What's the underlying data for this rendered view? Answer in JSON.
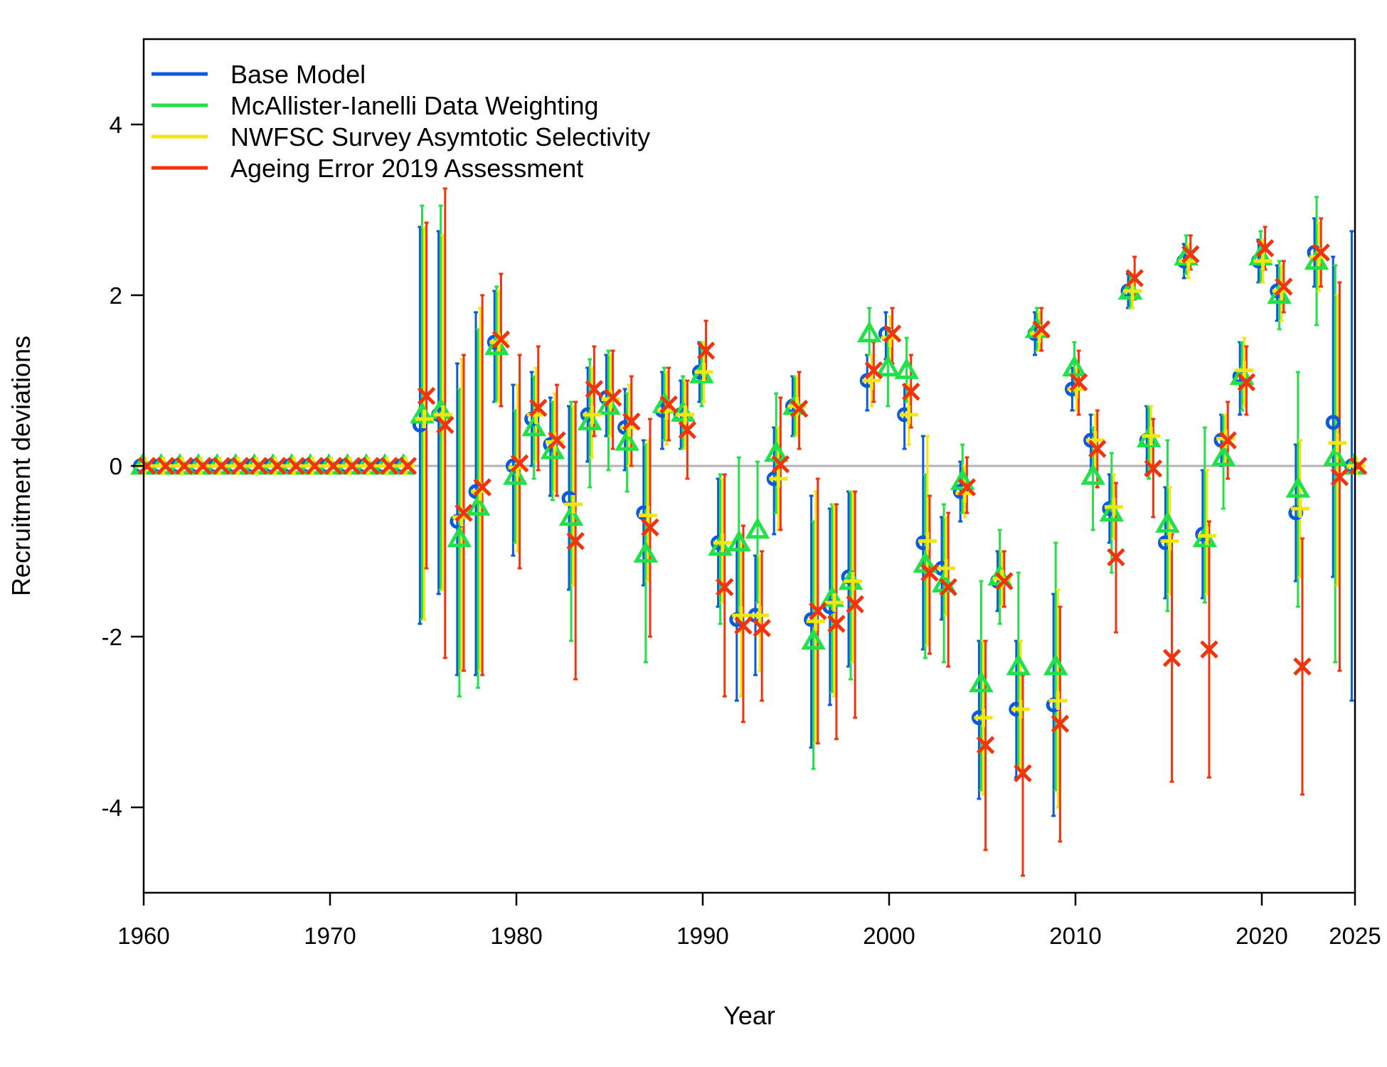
{
  "chart_data": {
    "type": "scatter",
    "title": "",
    "xlabel": "Year",
    "ylabel": "Recruitment deviations",
    "xlim": [
      1960,
      2025
    ],
    "ylim": [
      -5,
      5
    ],
    "x_ticks": [
      1960,
      1970,
      1980,
      1990,
      2000,
      2010,
      2020,
      2025
    ],
    "x_tick_labels": [
      "1960",
      "1970",
      "1980",
      "1990",
      "2000",
      "2010",
      "2020",
      "2025"
    ],
    "y_ticks": [
      -4,
      -2,
      0,
      2,
      4
    ],
    "y_tick_labels": [
      "-4",
      "-2",
      "0",
      "2",
      "4"
    ],
    "reference_line": 0,
    "legend_position": "top-left",
    "grid": false,
    "series": [
      {
        "name": "Base Model",
        "color": "#0b5bd8",
        "marker": "circle",
        "x": [
          1960,
          1961,
          1962,
          1963,
          1964,
          1965,
          1966,
          1967,
          1968,
          1969,
          1970,
          1971,
          1972,
          1973,
          1974,
          1975,
          1976,
          1977,
          1978,
          1979,
          1980,
          1981,
          1982,
          1983,
          1984,
          1985,
          1986,
          1987,
          1988,
          1989,
          1990,
          1991,
          1992,
          1993,
          1994,
          1995,
          1996,
          1997,
          1998,
          1999,
          2000,
          2001,
          2002,
          2003,
          2004,
          2005,
          2006,
          2007,
          2008,
          2009,
          2010,
          2011,
          2012,
          2013,
          2014,
          2015,
          2016,
          2017,
          2018,
          2019,
          2020,
          2021,
          2022,
          2023,
          2024,
          2025
        ],
        "y": [
          0,
          0,
          0,
          0,
          0,
          0,
          0,
          0,
          0,
          0,
          0,
          0,
          0,
          0,
          0,
          0.48,
          0.6,
          -0.65,
          -0.3,
          1.45,
          0,
          0.55,
          0.25,
          -0.38,
          0.6,
          0.8,
          0.45,
          -0.55,
          0.65,
          0.6,
          1.1,
          -0.9,
          -1.8,
          -1.75,
          -0.15,
          0.7,
          -1.8,
          -1.65,
          -1.3,
          1.0,
          1.55,
          0.6,
          -0.9,
          -1.2,
          -0.3,
          -2.95,
          -1.35,
          -2.85,
          1.55,
          -2.8,
          0.9,
          0.3,
          -0.5,
          2.05,
          0.3,
          -0.9,
          2.4,
          -0.8,
          0.3,
          1.05,
          2.4,
          2.05,
          -0.55,
          2.5,
          0.51,
          0
        ],
        "lower": [
          0,
          0,
          0,
          0,
          0,
          0,
          0,
          0,
          0,
          0,
          0,
          0,
          0,
          0,
          0,
          -1.85,
          -1.5,
          -2.45,
          -2.45,
          0.75,
          -1.05,
          0.0,
          -0.35,
          -1.45,
          0.05,
          0.35,
          -0.05,
          -1.4,
          0.2,
          0.2,
          0.75,
          -1.65,
          -2.75,
          -2.45,
          -0.8,
          0.35,
          -3.3,
          -2.8,
          -2.35,
          0.65,
          1.25,
          0.2,
          -2.15,
          -1.8,
          -0.65,
          -3.9,
          -1.7,
          -3.65,
          1.3,
          -4.1,
          0.65,
          -0.05,
          -0.9,
          1.85,
          -0.1,
          -1.55,
          2.2,
          -1.55,
          0.0,
          0.6,
          2.15,
          1.7,
          -1.35,
          2.1,
          -1.3,
          -2.75
        ],
        "upper": [
          0,
          0,
          0,
          0,
          0,
          0,
          0,
          0,
          0,
          0,
          0,
          0,
          0,
          0,
          0,
          2.8,
          2.75,
          1.2,
          1.8,
          2.05,
          0.95,
          1.1,
          0.8,
          0.7,
          1.15,
          1.3,
          0.9,
          0.3,
          1.1,
          1.0,
          1.45,
          -0.15,
          -0.85,
          -1.05,
          0.45,
          1.05,
          -0.35,
          -0.5,
          -0.3,
          1.3,
          1.8,
          0.95,
          0.35,
          -0.6,
          0.05,
          -2.05,
          -1.0,
          -2.05,
          1.8,
          -1.5,
          1.15,
          0.6,
          -0.1,
          2.25,
          0.7,
          -0.25,
          2.6,
          -0.05,
          0.6,
          1.45,
          2.65,
          2.35,
          0.25,
          2.9,
          2.45,
          2.75
        ]
      },
      {
        "name": "McAllister-Ianelli Data Weighting",
        "color": "#22e04a",
        "marker": "triangle",
        "x": [
          1960,
          1961,
          1962,
          1963,
          1964,
          1965,
          1966,
          1967,
          1968,
          1969,
          1970,
          1971,
          1972,
          1973,
          1974,
          1975,
          1976,
          1977,
          1978,
          1979,
          1980,
          1981,
          1982,
          1983,
          1984,
          1985,
          1986,
          1987,
          1988,
          1989,
          1990,
          1991,
          1992,
          1993,
          1994,
          1995,
          1996,
          1997,
          1998,
          1999,
          2000,
          2001,
          2002,
          2003,
          2004,
          2005,
          2006,
          2007,
          2008,
          2009,
          2010,
          2011,
          2012,
          2013,
          2014,
          2015,
          2016,
          2017,
          2018,
          2019,
          2020,
          2021,
          2022,
          2023,
          2024,
          2025
        ],
        "y": [
          0,
          0,
          0,
          0,
          0,
          0,
          0,
          0,
          0,
          0,
          0,
          0,
          0,
          0,
          0,
          0.6,
          0.65,
          -0.85,
          -0.48,
          1.4,
          -0.12,
          0.45,
          0.18,
          -0.6,
          0.52,
          0.7,
          0.28,
          -1.03,
          0.72,
          0.62,
          1.07,
          -0.95,
          -0.9,
          -0.75,
          0.15,
          0.7,
          -2.05,
          -1.55,
          -1.35,
          1.55,
          1.15,
          1.12,
          -1.15,
          -1.38,
          -0.18,
          -2.55,
          -1.3,
          -2.35,
          1.6,
          -2.35,
          1.15,
          -0.12,
          -0.55,
          2.05,
          0.32,
          -0.68,
          2.45,
          -0.85,
          0.1,
          1.05,
          2.45,
          2.0,
          -0.27,
          2.4,
          0.1,
          0
        ],
        "lower": [
          0,
          0,
          0,
          0,
          0,
          0,
          0,
          0,
          0,
          0,
          0,
          0,
          0,
          0,
          0,
          -1.8,
          -1.45,
          -2.7,
          -2.6,
          0.75,
          -0.9,
          -0.15,
          -0.4,
          -2.05,
          -0.25,
          -0.05,
          -0.3,
          -2.3,
          0.3,
          0.2,
          0.7,
          -1.85,
          -1.85,
          -1.6,
          -0.55,
          0.35,
          -3.55,
          -2.65,
          -2.5,
          1.3,
          0.7,
          0.75,
          -2.25,
          -2.3,
          -0.55,
          -3.8,
          -1.85,
          -3.55,
          1.35,
          -3.8,
          0.85,
          -0.75,
          -1.25,
          1.85,
          -0.15,
          -1.7,
          2.25,
          -1.6,
          -0.5,
          0.65,
          2.15,
          1.6,
          -1.65,
          1.65,
          -2.3,
          0
        ],
        "upper": [
          0,
          0,
          0,
          0,
          0,
          0,
          0,
          0,
          0,
          0,
          0,
          0,
          0,
          0,
          0,
          3.05,
          3.05,
          0.9,
          1.6,
          2.1,
          0.65,
          1.05,
          0.75,
          0.75,
          1.25,
          1.35,
          0.85,
          0.25,
          1.15,
          1.05,
          1.45,
          -0.1,
          0.1,
          0.05,
          0.85,
          1.05,
          -0.65,
          -0.45,
          -0.3,
          1.85,
          1.6,
          1.5,
          -0.1,
          -0.45,
          0.25,
          -1.35,
          -0.75,
          -1.25,
          1.85,
          -0.9,
          1.45,
          0.45,
          0.15,
          2.25,
          0.7,
          0.3,
          2.7,
          0.45,
          0.6,
          1.45,
          2.75,
          2.4,
          1.1,
          3.15,
          2.35,
          0
        ]
      },
      {
        "name": "NWFSC Survey Asymtotic Selectivity",
        "color": "#f4e60a",
        "marker": "plus",
        "x": [
          1960,
          1961,
          1962,
          1963,
          1964,
          1965,
          1966,
          1967,
          1968,
          1969,
          1970,
          1971,
          1972,
          1973,
          1974,
          1975,
          1976,
          1977,
          1978,
          1979,
          1980,
          1981,
          1982,
          1983,
          1984,
          1985,
          1986,
          1987,
          1988,
          1989,
          1990,
          1991,
          1992,
          1993,
          1994,
          1995,
          1996,
          1997,
          1998,
          1999,
          2000,
          2001,
          2002,
          2003,
          2004,
          2005,
          2006,
          2007,
          2008,
          2009,
          2010,
          2011,
          2012,
          2013,
          2014,
          2015,
          2016,
          2017,
          2018,
          2019,
          2020,
          2021,
          2022,
          2023,
          2024,
          2025
        ],
        "y": [
          0,
          0,
          0,
          0,
          0,
          0,
          0,
          0,
          0,
          0,
          0,
          0,
          0,
          0,
          0,
          0.55,
          0.6,
          -0.6,
          -0.3,
          1.45,
          -0.02,
          0.6,
          0.28,
          -0.45,
          0.6,
          0.78,
          0.45,
          -0.58,
          0.65,
          0.6,
          1.1,
          -0.9,
          -1.75,
          -1.75,
          -0.15,
          0.7,
          -1.82,
          -1.6,
          -1.35,
          1.0,
          1.5,
          0.6,
          -0.88,
          -1.2,
          -0.32,
          -2.95,
          -1.32,
          -2.85,
          1.55,
          -2.75,
          0.9,
          0.3,
          -0.48,
          2.05,
          0.35,
          -0.88,
          2.4,
          -0.82,
          0.32,
          1.12,
          2.4,
          2.05,
          -0.5,
          2.45,
          0.27,
          0
        ],
        "lower": [
          0,
          0,
          0,
          0,
          0,
          0,
          0,
          0,
          0,
          0,
          0,
          0,
          0,
          0,
          0,
          -1.8,
          -1.45,
          -2.4,
          -2.4,
          0.75,
          -1.0,
          0.05,
          -0.3,
          -1.4,
          0.1,
          0.35,
          0.0,
          -1.35,
          0.25,
          0.2,
          0.75,
          -1.6,
          -2.7,
          -2.4,
          -0.75,
          0.35,
          -3.25,
          -2.7,
          -2.3,
          0.7,
          1.2,
          0.25,
          -2.1,
          -1.75,
          -0.6,
          -3.85,
          -1.65,
          -3.6,
          1.35,
          -4.0,
          0.65,
          -0.05,
          -0.85,
          1.85,
          -0.05,
          -1.5,
          2.2,
          -1.5,
          0.05,
          0.7,
          2.15,
          1.7,
          -1.3,
          2.05,
          -1.4,
          0
        ],
        "upper": [
          0,
          0,
          0,
          0,
          0,
          0,
          0,
          0,
          0,
          0,
          0,
          0,
          0,
          0,
          0,
          2.8,
          2.7,
          1.25,
          1.85,
          2.05,
          0.95,
          1.15,
          0.85,
          0.7,
          1.15,
          1.3,
          0.95,
          0.3,
          1.1,
          1.0,
          1.45,
          -0.15,
          -0.8,
          -1.05,
          0.45,
          1.05,
          -0.3,
          -0.45,
          -0.3,
          1.3,
          1.75,
          0.95,
          0.35,
          -0.6,
          0.0,
          -2.05,
          -1.0,
          -2.05,
          1.8,
          -1.45,
          1.15,
          0.6,
          -0.1,
          2.25,
          0.7,
          -0.25,
          2.6,
          -0.05,
          0.6,
          1.5,
          2.65,
          2.35,
          0.3,
          2.85,
          2.0,
          0
        ]
      },
      {
        "name": "Ageing Error 2019 Assessment",
        "color": "#f2340e",
        "marker": "x",
        "x": [
          1960,
          1961,
          1962,
          1963,
          1964,
          1965,
          1966,
          1967,
          1968,
          1969,
          1970,
          1971,
          1972,
          1973,
          1974,
          1975,
          1976,
          1977,
          1978,
          1979,
          1980,
          1981,
          1982,
          1983,
          1984,
          1985,
          1986,
          1987,
          1988,
          1989,
          1990,
          1991,
          1992,
          1993,
          1994,
          1995,
          1996,
          1997,
          1998,
          1999,
          2000,
          2001,
          2002,
          2003,
          2004,
          2005,
          2006,
          2007,
          2008,
          2009,
          2010,
          2011,
          2012,
          2013,
          2014,
          2015,
          2016,
          2017,
          2018,
          2019,
          2020,
          2021,
          2022,
          2023,
          2024,
          2025
        ],
        "y": [
          0,
          0,
          0,
          0,
          0,
          0,
          0,
          0,
          0,
          0,
          0,
          0,
          0,
          0,
          0,
          0.82,
          0.48,
          -0.55,
          -0.25,
          1.48,
          0.03,
          0.68,
          0.3,
          -0.88,
          0.9,
          0.8,
          0.52,
          -0.72,
          0.72,
          0.42,
          1.35,
          -1.42,
          -1.87,
          -1.9,
          0.02,
          0.67,
          -1.7,
          -1.85,
          -1.62,
          1.12,
          1.55,
          0.87,
          -1.25,
          -1.42,
          -0.25,
          -3.27,
          -1.35,
          -3.6,
          1.6,
          -3.02,
          0.98,
          0.2,
          -1.07,
          2.2,
          -0.03,
          -2.25,
          2.48,
          -2.15,
          0.3,
          0.98,
          2.55,
          2.1,
          -2.35,
          2.5,
          -0.13,
          0
        ],
        "lower": [
          0,
          0,
          0,
          0,
          0,
          0,
          0,
          0,
          0,
          0,
          0,
          0,
          0,
          0,
          0,
          -1.2,
          -2.25,
          -2.4,
          -2.45,
          0.7,
          -1.2,
          -0.05,
          -0.35,
          -2.5,
          0.35,
          0.2,
          0.0,
          -2.0,
          0.3,
          -0.15,
          1.0,
          -2.7,
          -3.0,
          -2.75,
          -0.75,
          0.2,
          -3.25,
          -3.2,
          -2.95,
          0.75,
          1.2,
          0.45,
          -2.2,
          -2.35,
          -0.55,
          -4.5,
          -1.65,
          -4.8,
          1.35,
          -4.4,
          0.6,
          -0.25,
          -1.95,
          1.95,
          -0.6,
          -3.7,
          2.3,
          -3.65,
          -0.15,
          0.6,
          2.3,
          1.8,
          -3.85,
          2.1,
          -2.4,
          0
        ],
        "upper": [
          0,
          0,
          0,
          0,
          0,
          0,
          0,
          0,
          0,
          0,
          0,
          0,
          0,
          0,
          0,
          2.85,
          3.25,
          1.3,
          2.0,
          2.25,
          1.3,
          1.4,
          0.95,
          0.75,
          1.4,
          1.35,
          1.05,
          0.55,
          1.15,
          1.0,
          1.7,
          -0.1,
          -0.7,
          -1.0,
          0.8,
          1.1,
          -0.15,
          -0.45,
          -0.3,
          1.45,
          1.85,
          1.3,
          -0.35,
          -0.55,
          0.1,
          -2.05,
          -1.0,
          -2.45,
          1.85,
          -1.65,
          1.35,
          0.65,
          -0.2,
          2.45,
          0.55,
          -0.8,
          2.7,
          -0.65,
          0.75,
          1.4,
          2.8,
          2.4,
          -0.85,
          2.9,
          2.15,
          0
        ]
      }
    ]
  }
}
